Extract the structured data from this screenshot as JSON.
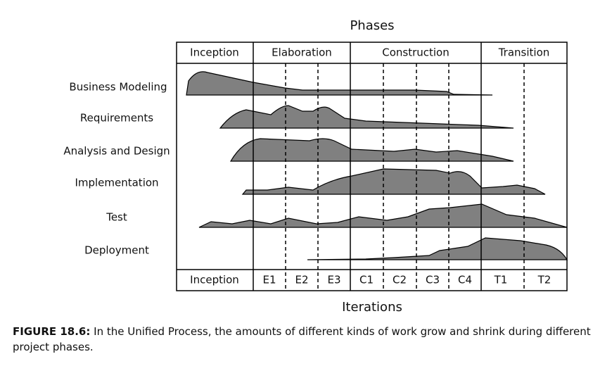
{
  "title": "Phases",
  "phases": [
    "Inception",
    "Elaboration",
    "Construction",
    "Transition"
  ],
  "activities": [
    "Business Modeling",
    "Requirements",
    "Analysis and Design",
    "Implementation",
    "Test",
    "Deployment"
  ],
  "iterations": [
    "Inception",
    "E1",
    "E2",
    "E3",
    "C1",
    "C2",
    "C3",
    "C4",
    "T1",
    "T2"
  ],
  "x_axis_label": "Iterations",
  "caption": {
    "label": "FIGURE 18.6:",
    "text": "In the Unified Process, the amounts of different kinds of work grow and shrink during different project phases."
  }
}
